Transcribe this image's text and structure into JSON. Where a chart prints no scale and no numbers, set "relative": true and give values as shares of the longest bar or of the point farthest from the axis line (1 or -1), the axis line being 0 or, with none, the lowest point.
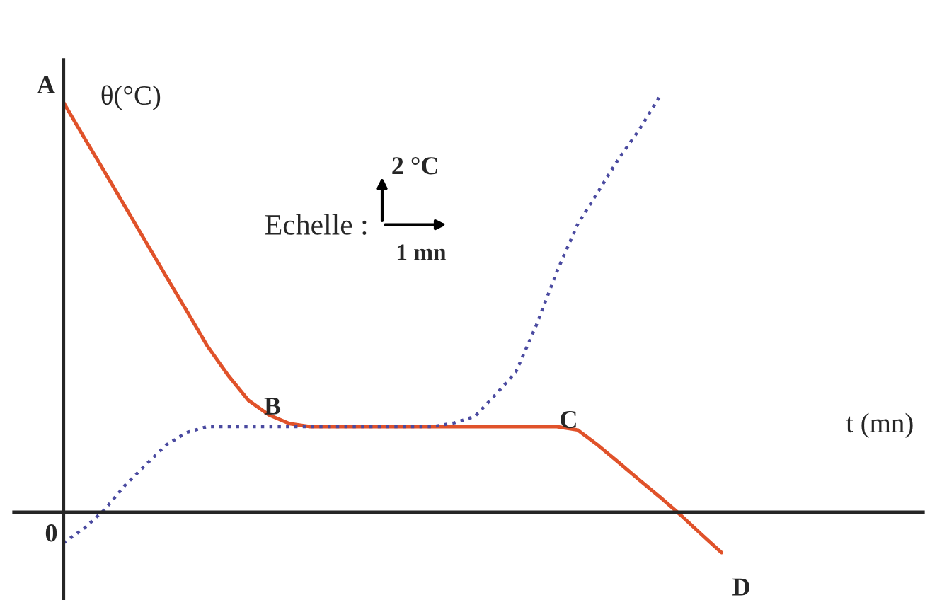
{
  "chart_data": {
    "type": "line",
    "relative": true,
    "xlabel": "t (mn)",
    "ylabel": "θ(°C)",
    "categories": [
      null,
      null,
      null,
      null,
      null,
      null,
      null,
      null,
      null,
      null,
      null,
      null,
      null,
      null,
      null,
      null,
      null,
      null,
      null,
      null,
      null,
      null,
      null,
      null,
      null,
      null,
      null,
      null,
      null,
      null,
      null,
      null,
      null
    ],
    "marker": "none",
    "grid": false,
    "legend": false,
    "series": [
      {
        "color": "#e0522a",
        "line_style": "solid",
        "values": [
          0.986,
          0.902,
          0.819,
          0.735,
          0.651,
          0.567,
          0.484,
          0.4,
          0.33,
          0.269,
          0.234,
          0.213,
          0.206,
          0.206,
          0.206,
          0.206,
          0.206,
          0.206,
          0.206,
          0.206,
          0.206,
          0.206,
          0.206,
          0.206,
          0.206,
          0.198,
          0.161,
          0.12,
          0.078,
          0.037,
          -0.006,
          -0.052,
          -0.097
        ]
      },
      {
        "color": "#4a4aa0",
        "line_style": "dotted",
        "values": [
          -0.074,
          -0.039,
          0.006,
          0.065,
          0.114,
          0.162,
          0.192,
          0.206,
          0.206,
          0.206,
          0.206,
          0.206,
          0.206,
          0.206,
          0.206,
          0.206,
          0.206,
          0.206,
          0.206,
          0.215,
          0.23,
          0.282,
          0.337,
          0.45,
          0.579,
          0.692,
          0.771,
          0.85,
          0.92,
          1.0,
          null,
          null,
          null
        ]
      }
    ],
    "annotations": [
      "A",
      "B",
      "C",
      "D",
      "Echelle :",
      "2 °C",
      "1 mn",
      "0"
    ]
  }
}
